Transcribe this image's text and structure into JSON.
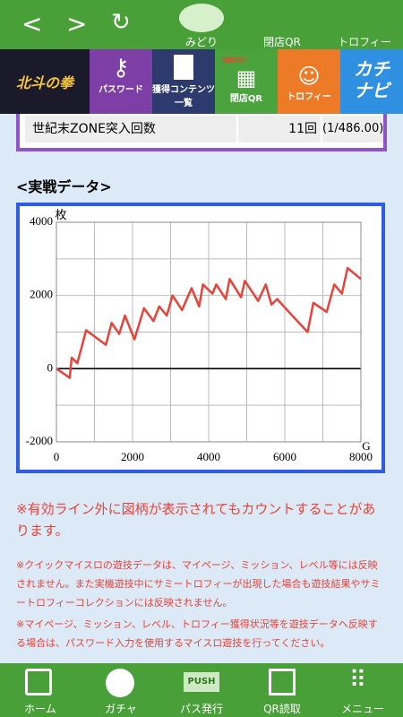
{
  "header": {
    "midori": "みどり",
    "closing_qr": "閉店QR",
    "trophy": "トロフィー"
  },
  "banner": {
    "logo_left": "北斗の拳",
    "password": "パスワード",
    "contents_1": "獲得コンテンツ",
    "contents_2": "一覧",
    "new": "NEW!",
    "closing_qr": "閉店QR",
    "trophy": "トロフィー",
    "logo_right_1": "カチ",
    "logo_right_2": "ナビ"
  },
  "table": {
    "rows": [
      [
        "世紀末ZONE突入回数",
        "11回",
        "(1/486.00)"
      ]
    ]
  },
  "section_title": "<実戦データ>",
  "chart_data": {
    "type": "line",
    "y_unit": "枚",
    "x_unit": "G",
    "color": "#e8433a",
    "x": [
      0,
      350,
      400,
      550,
      780,
      1300,
      1450,
      1650,
      1800,
      2050,
      2300,
      2550,
      2700,
      2900,
      3050,
      3300,
      3550,
      3750,
      3850,
      4100,
      4200,
      4450,
      4550,
      4850,
      4950,
      5300,
      5500,
      5650,
      5800,
      6150,
      6600,
      6750,
      7100,
      7300,
      7500,
      7650,
      8000
    ],
    "values": [
      0,
      -250,
      300,
      150,
      1050,
      650,
      1250,
      950,
      1450,
      800,
      1650,
      1300,
      1700,
      1450,
      2000,
      1600,
      2200,
      1700,
      2300,
      2050,
      2300,
      1900,
      2450,
      1950,
      2400,
      1850,
      2300,
      1750,
      1900,
      1500,
      1000,
      1800,
      1550,
      2300,
      2050,
      2750,
      2450
    ],
    "xlim": [
      0,
      8000
    ],
    "ylim": [
      -2000,
      4000
    ],
    "xticks": [
      0,
      2000,
      4000,
      6000,
      8000
    ],
    "yticks": [
      -2000,
      0,
      2000,
      4000
    ],
    "x_minor_ticks": [
      1000,
      3000,
      5000,
      7000
    ],
    "y_minor_ticks": [
      -1000,
      1000,
      3000
    ],
    "grid": true
  },
  "notes": [
    "※有効ライン外に図柄が表示されてもカウントすることがあります。",
    "※クイックマイスロの遊技データは、マイページ、ミッション、レベル等には反映されません。また実機遊技中にサミートロフィーが出現した場合も遊技結果やサミートロフィーコレクションには反映されません。",
    "※マイページ、ミッション、レベル、トロフィー獲得状況等を遊技データへ反映する場合は、パスワード入力を使用するマイスロ遊技を行ってください。"
  ],
  "nav": {
    "home": "ホーム",
    "gacha": "ガチャ",
    "push": "PUSH",
    "pass": "パス発行",
    "qr": "QR読取",
    "menu": "メニュー"
  }
}
